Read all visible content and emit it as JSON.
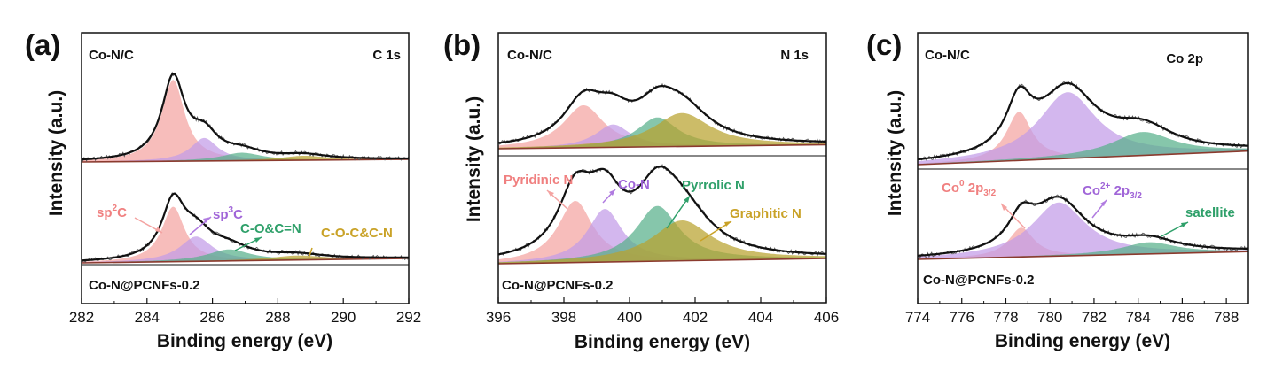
{
  "figure": {
    "colors": {
      "frame": "#111111",
      "raw": "#555555",
      "fit": "#111111",
      "baseline": "#8B3A2E",
      "pink": "#F4A3A1",
      "purple": "#C29BE8",
      "green": "#58B08A",
      "olive": "#B8A22E",
      "arrow_pink": "#F4A3A1",
      "arrow_purple": "#B07BE0",
      "arrow_green": "#2FA06A",
      "arrow_olive": "#C9A227"
    }
  },
  "chart_data": [
    {
      "panel_label": "(a)",
      "type": "line",
      "region_label": "C 1s",
      "top_sample": "Co-N/C",
      "bottom_sample": "Co-N@PCNFs-0.2",
      "xlabel": "Binding energy (eV)",
      "ylabel": "Intensity (a.u.)",
      "xlim": [
        282,
        292
      ],
      "xticks": [
        "282",
        "284",
        "286",
        "288",
        "290",
        "292"
      ],
      "annotations": [
        {
          "text": "sp2C",
          "base": "sp",
          "sup": "2",
          "tail": "C",
          "color_key": "pink"
        },
        {
          "text": "sp3C",
          "base": "sp",
          "sup": "3",
          "tail": "C",
          "color_key": "purple"
        },
        {
          "text": "C-O&C=N",
          "color_key": "green"
        },
        {
          "text": "C-O-C&C-N",
          "color_key": "olive"
        }
      ],
      "spectra": {
        "top": {
          "peaks": [
            {
              "component": "sp2C",
              "center": 284.8,
              "height": 0.92,
              "width": 0.85,
              "color_key": "pink"
            },
            {
              "component": "sp3C",
              "center": 285.75,
              "height": 0.26,
              "width": 1.0,
              "color_key": "purple"
            },
            {
              "component": "C-O&C=N",
              "center": 286.9,
              "height": 0.09,
              "width": 1.5,
              "color_key": "green"
            },
            {
              "component": "C-O-C&C-N",
              "center": 288.8,
              "height": 0.05,
              "width": 1.7,
              "color_key": "olive"
            }
          ],
          "baseline": {
            "start": 0.0,
            "end": 0.03
          }
        },
        "bottom": {
          "peaks": [
            {
              "component": "sp2C",
              "center": 284.8,
              "height": 0.62,
              "width": 0.85,
              "color_key": "pink"
            },
            {
              "component": "sp3C",
              "center": 285.5,
              "height": 0.28,
              "width": 1.2,
              "color_key": "purple"
            },
            {
              "component": "C-O&C=N",
              "center": 286.5,
              "height": 0.13,
              "width": 1.6,
              "color_key": "green"
            },
            {
              "component": "C-O-C&C-N",
              "center": 288.6,
              "height": 0.05,
              "width": 2.0,
              "color_key": "olive"
            }
          ],
          "baseline": {
            "start": 0.0,
            "end": 0.05
          }
        }
      }
    },
    {
      "panel_label": "(b)",
      "type": "line",
      "region_label": "N 1s",
      "top_sample": "Co-N/C",
      "bottom_sample": "Co-N@PCNFs-0.2",
      "xlabel": "Binding energy (eV)",
      "ylabel": "Intensity (a.u.)",
      "xlim": [
        396,
        406
      ],
      "xticks": [
        "396",
        "398",
        "400",
        "402",
        "404",
        "406"
      ],
      "annotations": [
        {
          "text": "Pyridinic N",
          "color_key": "pink"
        },
        {
          "text": "Co-N",
          "color_key": "purple"
        },
        {
          "text": "Pyrrolic N",
          "color_key": "green"
        },
        {
          "text": "Graphitic N",
          "color_key": "olive"
        }
      ],
      "spectra": {
        "top": {
          "peaks": [
            {
              "component": "Pyridinic N",
              "center": 398.6,
              "height": 0.52,
              "width": 1.5,
              "color_key": "pink"
            },
            {
              "component": "Co-N",
              "center": 399.5,
              "height": 0.28,
              "width": 1.3,
              "color_key": "purple"
            },
            {
              "component": "Pyrrolic N",
              "center": 400.85,
              "height": 0.36,
              "width": 1.5,
              "color_key": "green"
            },
            {
              "component": "Graphitic N",
              "center": 401.6,
              "height": 0.41,
              "width": 2.1,
              "color_key": "olive"
            }
          ],
          "baseline": {
            "start": 0.0,
            "end": 0.05
          }
        },
        "bottom": {
          "peaks": [
            {
              "component": "Pyridinic N",
              "center": 398.35,
              "height": 0.58,
              "width": 1.3,
              "color_key": "pink"
            },
            {
              "component": "Co-N",
              "center": 399.25,
              "height": 0.5,
              "width": 1.3,
              "color_key": "purple"
            },
            {
              "component": "Pyrrolic N",
              "center": 400.85,
              "height": 0.52,
              "width": 1.6,
              "color_key": "green"
            },
            {
              "component": "Graphitic N",
              "center": 401.6,
              "height": 0.38,
              "width": 2.2,
              "color_key": "olive"
            }
          ],
          "baseline": {
            "start": 0.0,
            "end": 0.05
          }
        }
      }
    },
    {
      "panel_label": "(c)",
      "type": "line",
      "region_label": "Co 2p",
      "top_sample": "Co-N/C",
      "bottom_sample": "Co-N@PCNFs-0.2",
      "xlabel": "Binding energy (eV)",
      "ylabel": "Intensity (a.u.)",
      "xlim": [
        774,
        789
      ],
      "xticks": [
        "774",
        "776",
        "778",
        "780",
        "782",
        "784",
        "786",
        "788"
      ],
      "annotations": [
        {
          "text": "Co0 2p3/2",
          "base": "Co",
          "sup": "0",
          "mid": " 2p",
          "sub": "3/2",
          "color_key": "pink"
        },
        {
          "text": "Co2+ 2p3/2",
          "base": "Co",
          "sup": "2+",
          "mid": " 2p",
          "sub": "3/2",
          "color_key": "purple"
        },
        {
          "text": "satellite",
          "color_key": "green"
        }
      ],
      "spectra": {
        "top": {
          "peaks": [
            {
              "component": "Co0 2p3/2",
              "center": 778.6,
              "height": 0.5,
              "width": 1.4,
              "color_key": "pink"
            },
            {
              "component": "Co2+ 2p3/2",
              "center": 780.8,
              "height": 0.68,
              "width": 3.2,
              "color_key": "purple"
            },
            {
              "component": "satellite",
              "center": 784.2,
              "height": 0.24,
              "width": 3.4,
              "color_key": "green"
            }
          ],
          "baseline": {
            "start": 0.0,
            "end": 0.14
          }
        },
        "bottom": {
          "peaks": [
            {
              "component": "Co0 2p3/2",
              "center": 778.7,
              "height": 0.3,
              "width": 1.4,
              "color_key": "pink"
            },
            {
              "component": "Co2+ 2p3/2",
              "center": 780.4,
              "height": 0.55,
              "width": 3.0,
              "color_key": "purple"
            },
            {
              "component": "satellite",
              "center": 784.5,
              "height": 0.12,
              "width": 3.0,
              "color_key": "green"
            }
          ],
          "baseline": {
            "start": 0.0,
            "end": 0.08
          }
        }
      }
    }
  ]
}
